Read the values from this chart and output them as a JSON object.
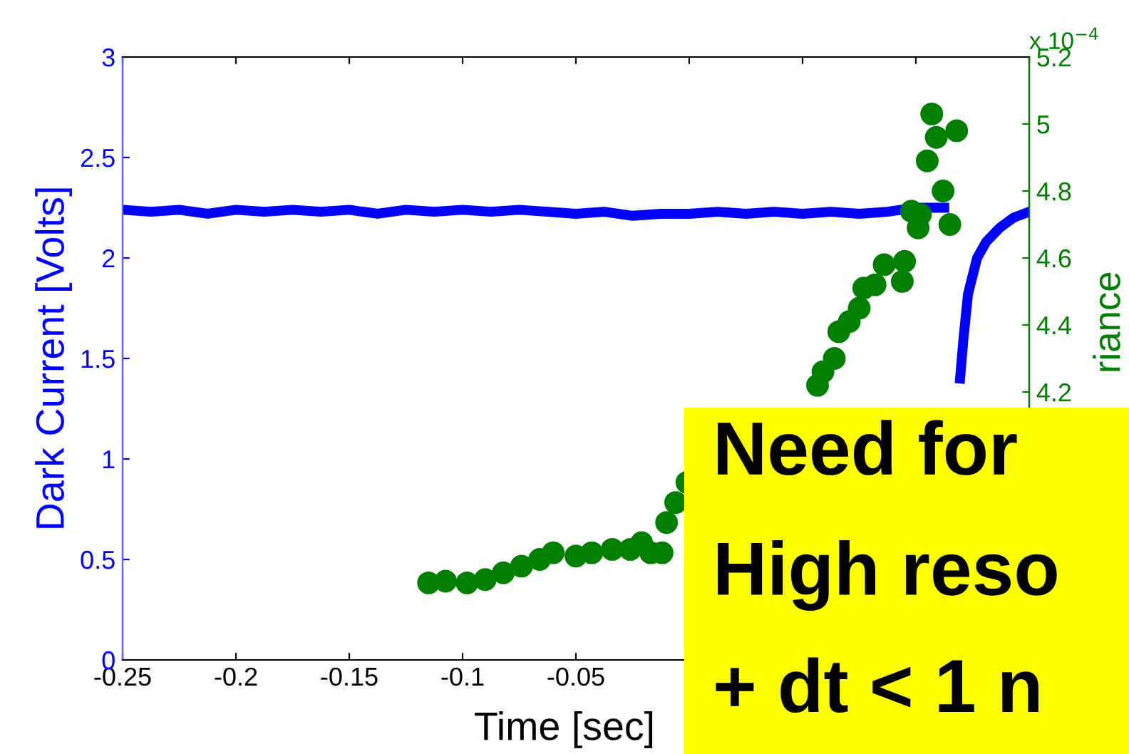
{
  "chart_data": {
    "type": "line",
    "xlabel": "Time [sec]",
    "ylabel": "Dark Current [Volts]",
    "y2label": "riance",
    "annotations": [
      "x 10$^{−4}$",
      "Need for",
      "High reso",
      "+ dt < 1 n"
    ],
    "xlim": [
      -0.25,
      0.15
    ],
    "xticks": [
      -0.25,
      -0.2,
      -0.15,
      -0.1,
      -0.05,
      {
        "value": 0,
        "label": null
      },
      {
        "value": 0.05,
        "label": null
      },
      {
        "value": 0.1,
        "label": null
      },
      {
        "value": 0.15,
        "label": null
      }
    ],
    "ylim": [
      0,
      3
    ],
    "yticks": [
      0,
      0.5,
      1,
      1.5,
      2,
      2.5,
      3
    ],
    "y2lim": [
      3.4,
      5.2
    ],
    "y2ticks": [
      4.2,
      4.4,
      4.6,
      4.8,
      5,
      5.2
    ],
    "grid": false,
    "legend": false,
    "series": [
      {
        "color": "#0000ff",
        "marker": "none",
        "x": [
          -0.25,
          -0.2375,
          -0.225,
          -0.2125,
          -0.2,
          -0.1875,
          -0.175,
          -0.1625,
          -0.15,
          -0.1375,
          -0.125,
          -0.1125,
          -0.1,
          -0.0875,
          -0.075,
          -0.0625,
          -0.05,
          -0.0375,
          -0.025,
          -0.0125,
          0,
          0.0125,
          0.025,
          0.0375,
          0.05,
          0.0625,
          0.075,
          0.0875,
          0.1,
          0.1125,
          0.1135,
          0.1195,
          0.121,
          0.123,
          0.127,
          0.131,
          0.137,
          0.143,
          0.15
        ],
        "values": [
          2.24,
          2.23,
          2.24,
          2.22,
          2.24,
          2.23,
          2.24,
          2.23,
          2.24,
          2.22,
          2.24,
          2.23,
          2.24,
          2.23,
          2.24,
          2.23,
          2.22,
          2.23,
          2.21,
          2.22,
          2.22,
          2.23,
          2.22,
          2.23,
          2.22,
          2.23,
          2.22,
          2.23,
          2.25,
          2.25,
          null,
          1.4,
          1.6,
          1.82,
          2.0,
          2.08,
          2.15,
          2.2,
          2.23
        ]
      },
      {
        "type": "scatter",
        "axis": "y2",
        "color": "#007f00",
        "marker": "circle",
        "x": [
          -0.115,
          -0.1075,
          -0.098,
          -0.09,
          -0.082,
          -0.074,
          -0.066,
          -0.06,
          -0.05,
          -0.043,
          -0.034,
          -0.026,
          -0.021,
          -0.017,
          -0.012,
          -0.01,
          -0.006,
          -0.001,
          0.0566,
          0.059,
          0.064,
          0.066,
          0.0706,
          0.075,
          0.077,
          0.082,
          0.086,
          0.094,
          0.095,
          0.098,
          0.101,
          0.102,
          0.112,
          0.115,
          0.105,
          0.109,
          0.107,
          0.118
        ],
        "values": [
          3.63,
          3.635,
          3.63,
          3.64,
          3.66,
          3.68,
          3.7,
          3.72,
          3.71,
          3.72,
          3.73,
          3.73,
          3.75,
          3.72,
          3.72,
          3.81,
          3.87,
          3.93,
          4.22,
          4.26,
          4.3,
          4.38,
          4.41,
          4.45,
          4.51,
          4.52,
          4.58,
          4.53,
          4.59,
          4.74,
          4.69,
          4.73,
          4.8,
          4.7,
          4.89,
          4.96,
          5.03,
          4.98
        ]
      }
    ]
  }
}
